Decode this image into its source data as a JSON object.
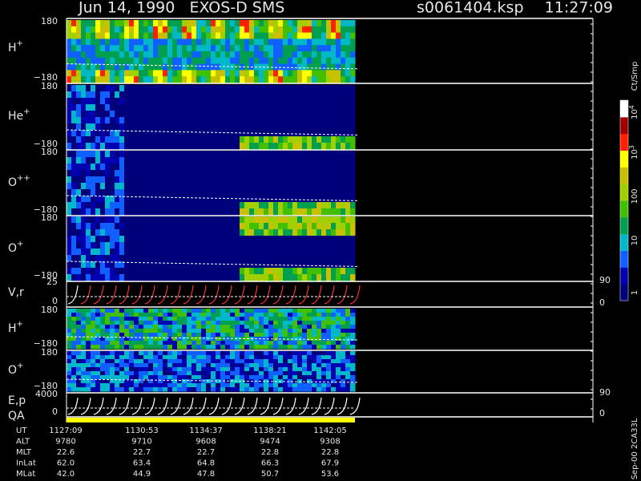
{
  "header": {
    "title": "Jun 14, 1990   EXOS-D SMS",
    "file": "s0061404.ksp",
    "time": "11:27:09"
  },
  "panels": [
    {
      "label": "H",
      "sup": "+",
      "ticks": [
        "180",
        "−180"
      ]
    },
    {
      "label": "He",
      "sup": "+",
      "ticks": [
        "180",
        "−180"
      ]
    },
    {
      "label": "O",
      "sup": "++",
      "ticks": [
        "180",
        "−180"
      ]
    },
    {
      "label": "O",
      "sup": "+",
      "ticks": [
        "180",
        "−180"
      ]
    },
    {
      "label": "H",
      "sup": "+",
      "ticks": [
        "180",
        "−180"
      ]
    },
    {
      "label": "O",
      "sup": "+",
      "ticks": [
        "180",
        "−180"
      ]
    }
  ],
  "line_panels": [
    {
      "label": "V,r",
      "ticks": [
        "25",
        "0"
      ],
      "right_ticks": [
        "90",
        "0"
      ]
    },
    {
      "label": "E,p",
      "ticks": [
        "4000",
        "0"
      ],
      "right_ticks": [
        "90",
        "0"
      ]
    }
  ],
  "qa_label": "QA",
  "colorbar": {
    "title": "Ct/Smp",
    "ticks": [
      {
        "base": "10",
        "exp": "4"
      },
      {
        "base": "10",
        "exp": "3"
      },
      "100",
      "10",
      "1"
    ]
  },
  "footer": {
    "rows": [
      {
        "label": "UT",
        "values": [
          "1127:09",
          "1130:53",
          "1134:37",
          "1138:21",
          "1142:05"
        ]
      },
      {
        "label": "ALT",
        "values": [
          "9780",
          "9710",
          "9608",
          "9474",
          "9308"
        ]
      },
      {
        "label": "MLT",
        "values": [
          "22.6",
          "22.7",
          "22.7",
          "22.8",
          "22.8"
        ]
      },
      {
        "label": "InLat",
        "values": [
          "62.0",
          "63.4",
          "64.8",
          "66.3",
          "67.9"
        ]
      },
      {
        "label": "MLat",
        "values": [
          "42.0",
          "44.9",
          "47.8",
          "50.7",
          "53.6"
        ]
      }
    ]
  },
  "stamp": "Sep-00 2CA33L"
}
